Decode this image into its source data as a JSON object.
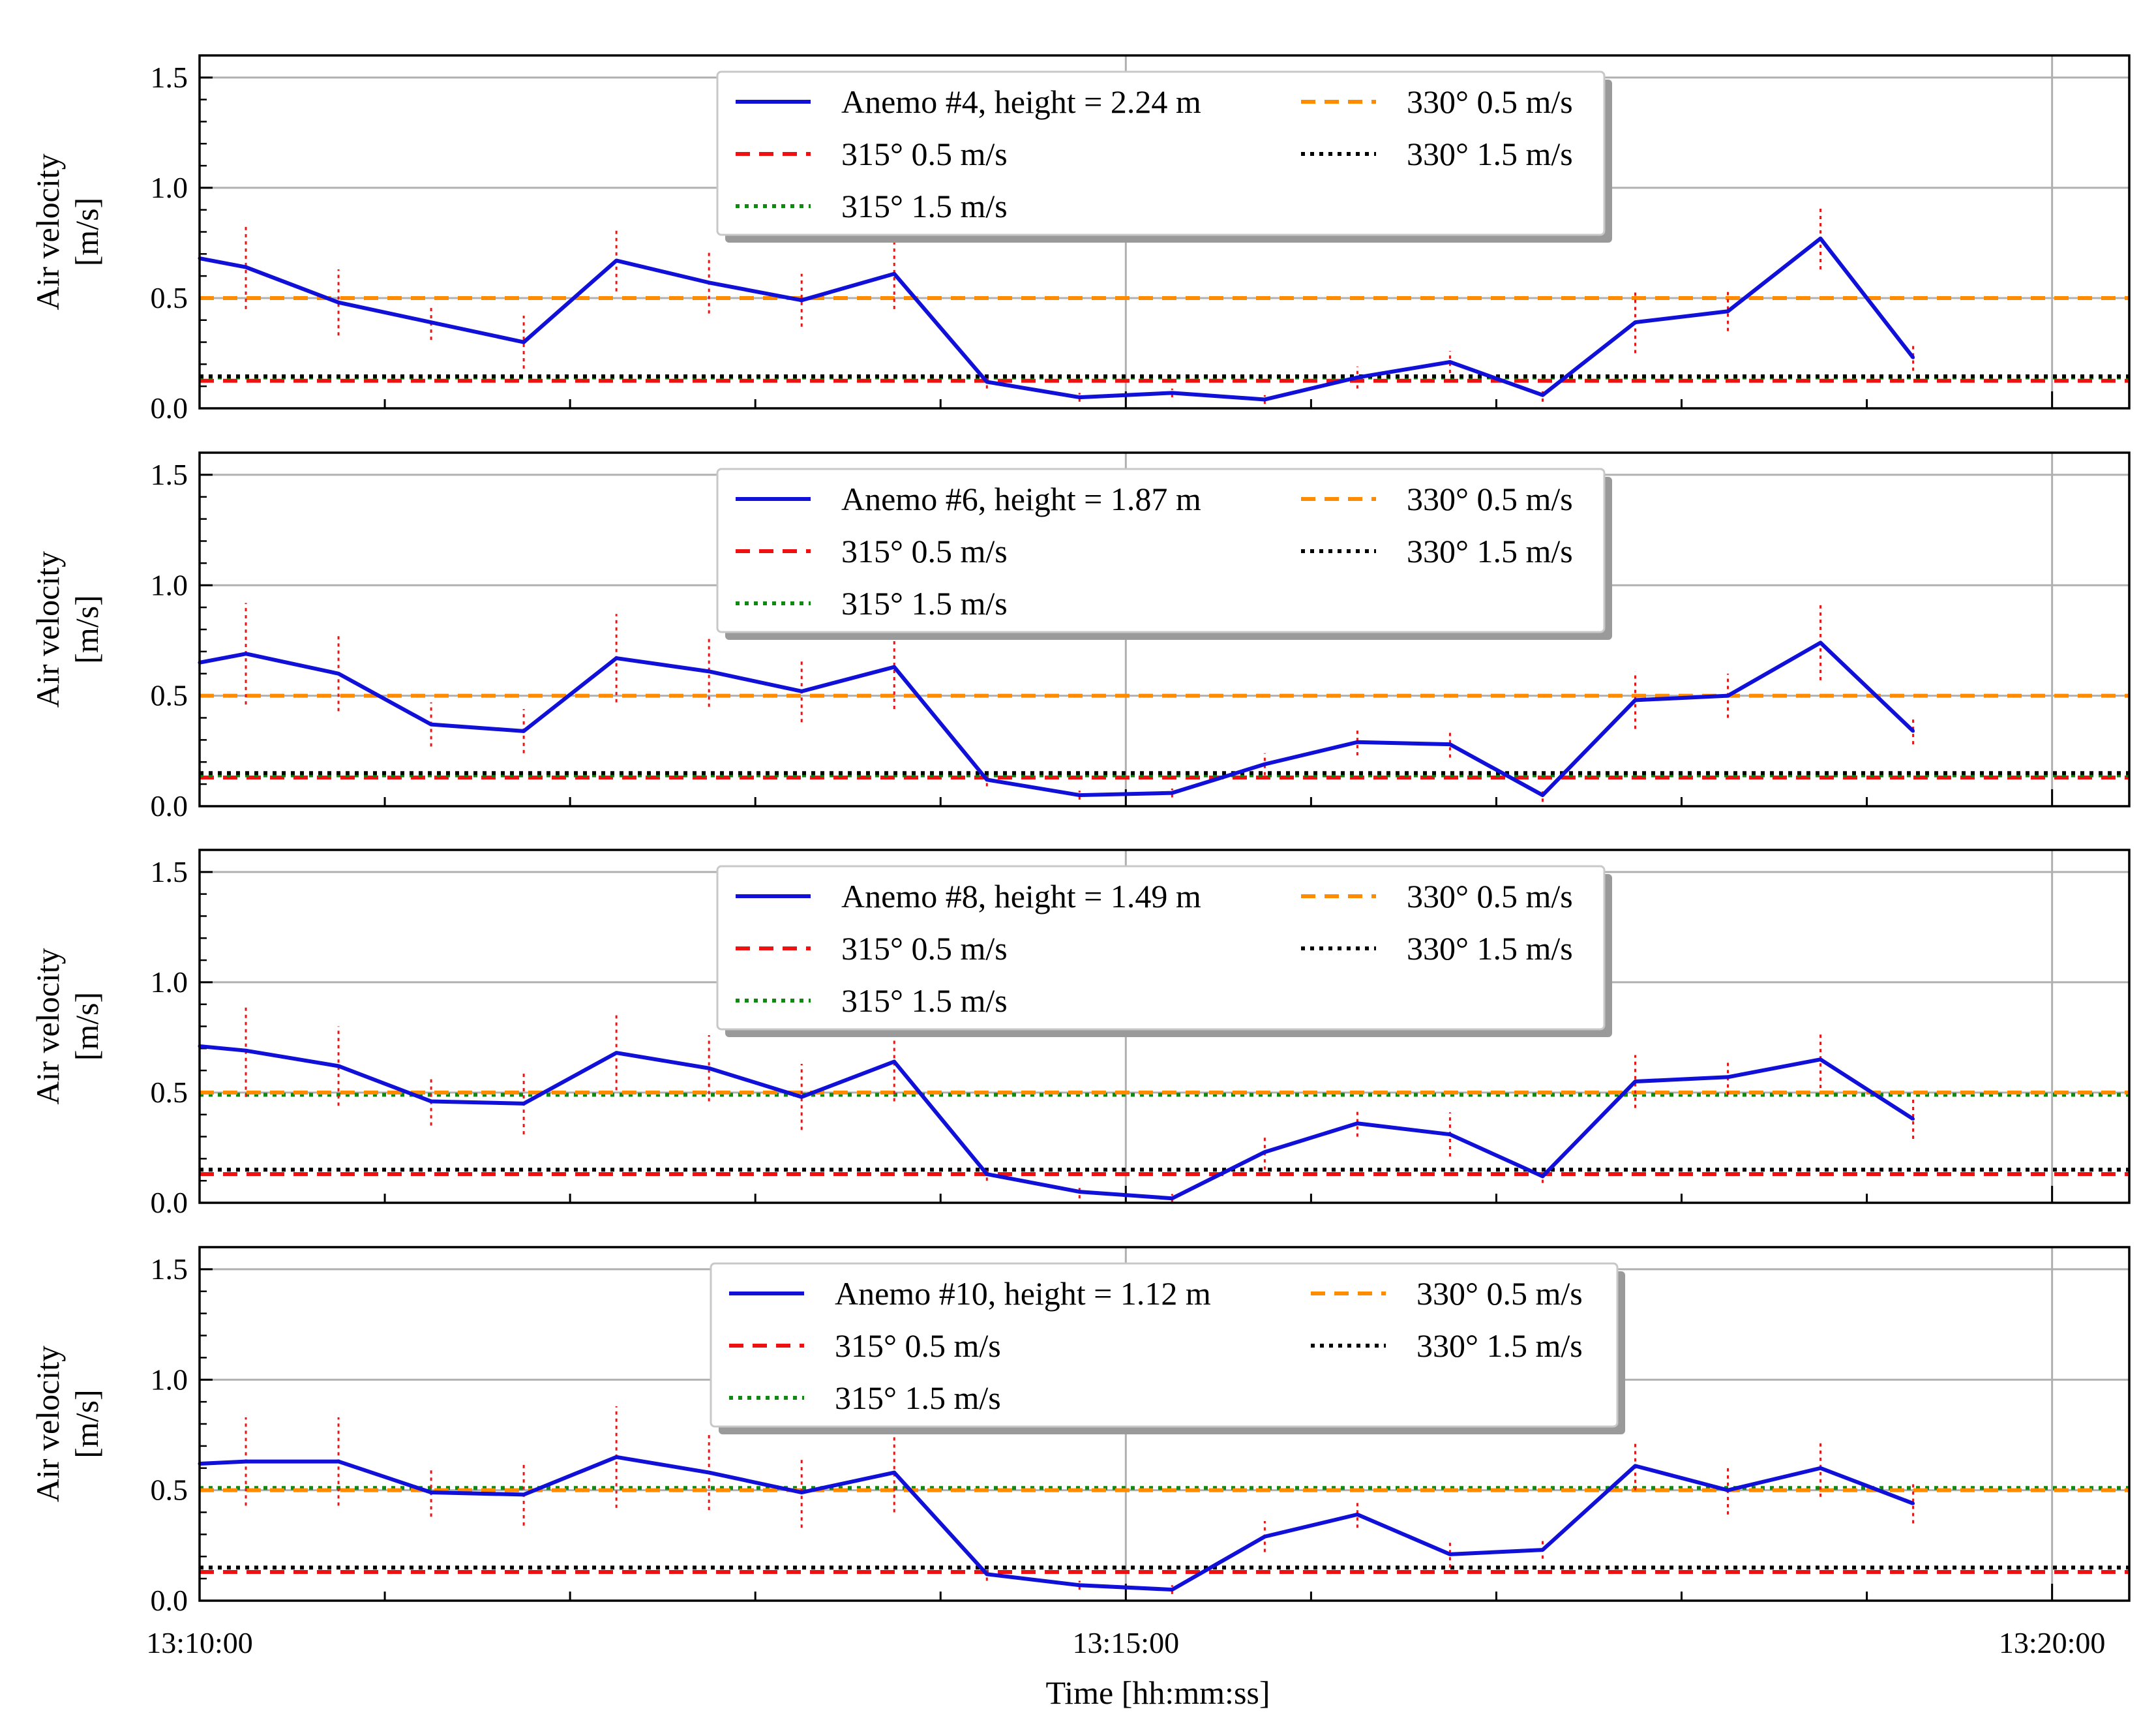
{
  "colors": {
    "measured": "#1010d8",
    "error_bar": "#e01818",
    "ref_315_05": "#ee1111",
    "ref_315_15": "#118811",
    "ref_330_05": "#ff8c00",
    "ref_330_15": "#000000",
    "grid": "#b0b0b0"
  },
  "x_axis": {
    "label": "Time [hh:mm:ss]",
    "ticks": [
      {
        "value": 0,
        "label": "13:10:00"
      },
      {
        "value": 300,
        "label": "13:15:00"
      },
      {
        "value": 600,
        "label": "13:20:00"
      }
    ],
    "minor_step_s": 60,
    "range_s": [
      0,
      625
    ]
  },
  "chart_data": [
    {
      "type": "line",
      "title": "",
      "xlabel": "Time [hh:mm:ss]",
      "ylabel": "Air velocity\n[m/s]",
      "ylabel_lines": [
        "Air velocity",
        "[m/s]"
      ],
      "ylim": [
        0,
        1.6
      ],
      "yticks": [
        {
          "value": 0,
          "label": "0.0"
        },
        {
          "value": 0.5,
          "label": "0.5"
        },
        {
          "value": 1.0,
          "label": "1.0"
        },
        {
          "value": 1.5,
          "label": "1.5"
        }
      ],
      "grid": true,
      "legend_position": "top-center",
      "series": [
        {
          "name": "Anemo #4, height = 2.24 m",
          "role": "measured",
          "x": [
            0,
            15,
            45,
            75,
            105,
            135,
            165,
            195,
            225,
            255,
            285,
            315,
            345,
            375,
            405,
            435,
            465,
            495,
            525,
            555
          ],
          "y": [
            0.68,
            0.64,
            0.48,
            0.39,
            0.3,
            0.67,
            0.57,
            0.49,
            0.61,
            0.12,
            0.05,
            0.07,
            0.04,
            0.14,
            0.21,
            0.06,
            0.39,
            0.44,
            0.77,
            0.23
          ],
          "error": [
            0.08,
            0.19,
            0.15,
            0.08,
            0.12,
            0.14,
            0.14,
            0.12,
            0.16,
            0.03,
            0.02,
            0.02,
            0.02,
            0.05,
            0.05,
            0.03,
            0.14,
            0.09,
            0.14,
            0.06
          ]
        },
        {
          "name": "315° 0.5 m/s",
          "role": "ref_315_05",
          "value": 0.125
        },
        {
          "name": "315° 1.5 m/s",
          "role": "ref_315_15",
          "value": 0.14
        },
        {
          "name": "330° 0.5 m/s",
          "role": "ref_330_05",
          "value": 0.5
        },
        {
          "name": "330° 1.5 m/s",
          "role": "ref_330_15",
          "value": 0.145
        }
      ]
    },
    {
      "type": "line",
      "title": "",
      "xlabel": "Time [hh:mm:ss]",
      "ylabel": "Air velocity\n[m/s]",
      "ylabel_lines": [
        "Air velocity",
        "[m/s]"
      ],
      "ylim": [
        0,
        1.6
      ],
      "yticks": [
        {
          "value": 0,
          "label": "0.0"
        },
        {
          "value": 0.5,
          "label": "0.5"
        },
        {
          "value": 1.0,
          "label": "1.0"
        },
        {
          "value": 1.5,
          "label": "1.5"
        }
      ],
      "grid": true,
      "legend_position": "top-center",
      "series": [
        {
          "name": "Anemo #6, height = 1.87 m",
          "role": "measured",
          "x": [
            0,
            15,
            45,
            75,
            105,
            135,
            165,
            195,
            225,
            255,
            285,
            315,
            345,
            375,
            405,
            435,
            465,
            495,
            525,
            555
          ],
          "y": [
            0.65,
            0.69,
            0.6,
            0.37,
            0.34,
            0.67,
            0.61,
            0.52,
            0.63,
            0.12,
            0.05,
            0.06,
            0.19,
            0.29,
            0.28,
            0.05,
            0.48,
            0.5,
            0.74,
            0.34
          ],
          "error": [
            0.08,
            0.23,
            0.17,
            0.1,
            0.1,
            0.2,
            0.16,
            0.14,
            0.19,
            0.03,
            0.02,
            0.02,
            0.05,
            0.06,
            0.06,
            0.03,
            0.13,
            0.1,
            0.17,
            0.06
          ]
        },
        {
          "name": "315° 0.5 m/s",
          "role": "ref_315_05",
          "value": 0.13
        },
        {
          "name": "315° 1.5 m/s",
          "role": "ref_315_15",
          "value": 0.14
        },
        {
          "name": "330° 0.5 m/s",
          "role": "ref_330_05",
          "value": 0.5
        },
        {
          "name": "330° 1.5 m/s",
          "role": "ref_330_15",
          "value": 0.15
        }
      ]
    },
    {
      "type": "line",
      "title": "",
      "xlabel": "Time [hh:mm:ss]",
      "ylabel": "Air velocity\n[m/s]",
      "ylabel_lines": [
        "Air velocity",
        "[m/s]"
      ],
      "ylim": [
        0,
        1.6
      ],
      "yticks": [
        {
          "value": 0,
          "label": "0.0"
        },
        {
          "value": 0.5,
          "label": "0.5"
        },
        {
          "value": 1.0,
          "label": "1.0"
        },
        {
          "value": 1.5,
          "label": "1.5"
        }
      ],
      "grid": true,
      "legend_position": "top-center",
      "series": [
        {
          "name": "Anemo #8, height = 1.49 m",
          "role": "measured",
          "x": [
            0,
            15,
            45,
            75,
            105,
            135,
            165,
            195,
            225,
            255,
            285,
            315,
            345,
            375,
            405,
            435,
            465,
            495,
            525,
            555
          ],
          "y": [
            0.71,
            0.69,
            0.62,
            0.46,
            0.45,
            0.68,
            0.61,
            0.48,
            0.64,
            0.13,
            0.05,
            0.02,
            0.23,
            0.36,
            0.31,
            0.12,
            0.55,
            0.57,
            0.65,
            0.38
          ],
          "error": [
            0.09,
            0.21,
            0.18,
            0.11,
            0.14,
            0.17,
            0.15,
            0.15,
            0.18,
            0.03,
            0.03,
            0.02,
            0.08,
            0.06,
            0.1,
            0.03,
            0.12,
            0.08,
            0.13,
            0.09
          ]
        },
        {
          "name": "315° 0.5 m/s",
          "role": "ref_315_05",
          "value": 0.13
        },
        {
          "name": "315° 1.5 m/s",
          "role": "ref_315_15",
          "value": 0.49
        },
        {
          "name": "330° 0.5 m/s",
          "role": "ref_330_05",
          "value": 0.5
        },
        {
          "name": "330° 1.5 m/s",
          "role": "ref_330_15",
          "value": 0.15
        }
      ]
    },
    {
      "type": "line",
      "title": "",
      "xlabel": "Time [hh:mm:ss]",
      "ylabel": "Air velocity\n[m/s]",
      "ylabel_lines": [
        "Air velocity",
        "[m/s]"
      ],
      "ylim": [
        0,
        1.6
      ],
      "yticks": [
        {
          "value": 0,
          "label": "0.0"
        },
        {
          "value": 0.5,
          "label": "0.5"
        },
        {
          "value": 1.0,
          "label": "1.0"
        },
        {
          "value": 1.5,
          "label": "1.5"
        }
      ],
      "grid": true,
      "legend_position": "top-center",
      "series": [
        {
          "name": "Anemo #10, height = 1.12 m",
          "role": "measured",
          "x": [
            0,
            15,
            45,
            75,
            105,
            135,
            165,
            195,
            225,
            255,
            285,
            315,
            345,
            375,
            405,
            435,
            465,
            495,
            525,
            555
          ],
          "y": [
            0.62,
            0.63,
            0.63,
            0.49,
            0.48,
            0.65,
            0.58,
            0.49,
            0.58,
            0.12,
            0.07,
            0.05,
            0.29,
            0.39,
            0.21,
            0.23,
            0.61,
            0.5,
            0.6,
            0.44
          ],
          "error": [
            0.06,
            0.2,
            0.2,
            0.11,
            0.14,
            0.23,
            0.17,
            0.16,
            0.18,
            0.03,
            0.02,
            0.02,
            0.07,
            0.06,
            0.06,
            0.04,
            0.11,
            0.11,
            0.13,
            0.09
          ]
        },
        {
          "name": "315° 0.5 m/s",
          "role": "ref_315_05",
          "value": 0.13
        },
        {
          "name": "315° 1.5 m/s",
          "role": "ref_315_15",
          "value": 0.51
        },
        {
          "name": "330° 0.5 m/s",
          "role": "ref_330_05",
          "value": 0.5
        },
        {
          "name": "330° 1.5 m/s",
          "role": "ref_330_15",
          "value": 0.15
        }
      ]
    }
  ]
}
